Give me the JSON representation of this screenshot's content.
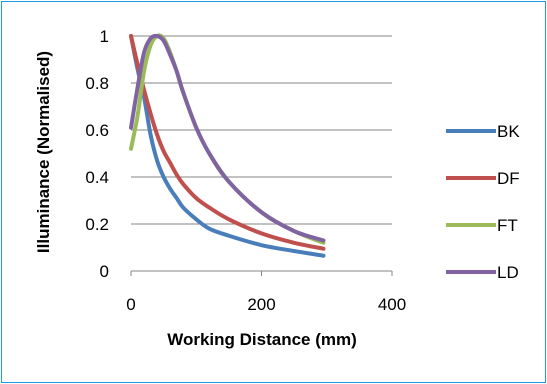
{
  "chart_data": {
    "type": "line",
    "title": "",
    "xlabel": "Working Distance (mm)",
    "ylabel": "Illuminance (Normalised)",
    "xlim": [
      0,
      400
    ],
    "ylim": [
      0,
      1
    ],
    "x_ticks": [
      "0",
      "200",
      "400"
    ],
    "y_ticks": [
      "0",
      "0.2",
      "0.4",
      "0.6",
      "0.8",
      "1"
    ],
    "grid": "horizontal",
    "legend_position": "right",
    "x": [
      0,
      10,
      20,
      30,
      40,
      50,
      60,
      70,
      80,
      100,
      120,
      150,
      200,
      250,
      295
    ],
    "series": [
      {
        "name": "BK",
        "color": "#4a7ebb",
        "values": [
          1.0,
          0.86,
          0.74,
          0.58,
          0.47,
          0.4,
          0.35,
          0.31,
          0.27,
          0.22,
          0.18,
          0.15,
          0.11,
          0.085,
          0.065
        ]
      },
      {
        "name": "DF",
        "color": "#c0504d",
        "values": [
          1.0,
          0.88,
          0.77,
          0.67,
          0.58,
          0.51,
          0.46,
          0.41,
          0.37,
          0.31,
          0.27,
          0.22,
          0.16,
          0.12,
          0.095
        ]
      },
      {
        "name": "FT",
        "color": "#9bbb59",
        "values": [
          0.52,
          0.66,
          0.85,
          0.96,
          1.0,
          0.99,
          0.93,
          0.85,
          0.76,
          0.61,
          0.5,
          0.38,
          0.25,
          0.17,
          0.12
        ]
      },
      {
        "name": "LD",
        "color": "#8064a2",
        "values": [
          0.61,
          0.78,
          0.93,
          0.99,
          1.0,
          0.98,
          0.92,
          0.85,
          0.76,
          0.61,
          0.5,
          0.38,
          0.25,
          0.17,
          0.13
        ]
      }
    ]
  }
}
